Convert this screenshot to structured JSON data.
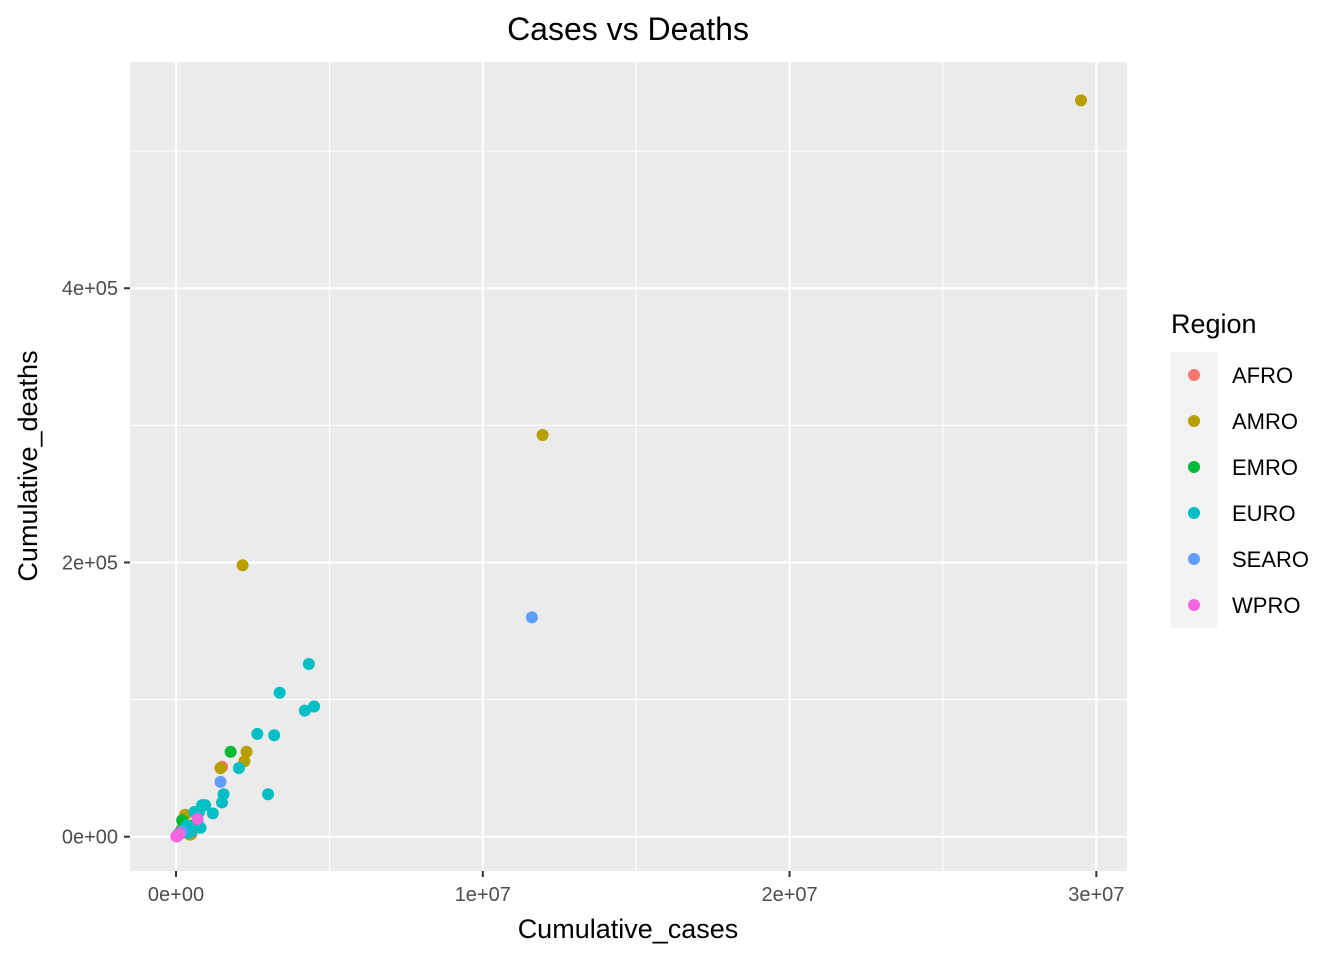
{
  "chart_data": {
    "type": "scatter",
    "title": "Cases vs Deaths",
    "xlabel": "Cumulative_cases",
    "ylabel": "Cumulative_deaths",
    "xlim": [
      -1500000,
      31000000
    ],
    "ylim": [
      -25000,
      565000
    ],
    "x_ticks": [
      {
        "value": 0,
        "label": "0e+00"
      },
      {
        "value": 10000000,
        "label": "1e+07"
      },
      {
        "value": 20000000,
        "label": "2e+07"
      },
      {
        "value": 30000000,
        "label": "3e+07"
      }
    ],
    "y_ticks": [
      {
        "value": 0,
        "label": "0e+00"
      },
      {
        "value": 200000,
        "label": "2e+05"
      },
      {
        "value": 400000,
        "label": "4e+05"
      }
    ],
    "x_minor": [
      5000000,
      15000000,
      25000000
    ],
    "y_minor": [
      100000,
      300000,
      500000
    ],
    "grid": true,
    "legend_title": "Region",
    "legend_position": "right",
    "series": [
      {
        "name": "AFRO",
        "color": "#F8766D",
        "points": [
          [
            1500000,
            51000
          ],
          [
            300000,
            5000
          ],
          [
            200000,
            3000
          ],
          [
            100000,
            1500
          ],
          [
            500000,
            2000
          ],
          [
            50000,
            500
          ]
        ]
      },
      {
        "name": "AMRO",
        "color": "#B79F00",
        "points": [
          [
            29500000,
            537000
          ],
          [
            11950000,
            293000
          ],
          [
            2170000,
            198000
          ],
          [
            2300000,
            62000
          ],
          [
            2230000,
            55000
          ],
          [
            1450000,
            50000
          ],
          [
            300000,
            16000
          ],
          [
            450000,
            1500
          ],
          [
            200000,
            6000
          ],
          [
            100000,
            2000
          ]
        ]
      },
      {
        "name": "EMRO",
        "color": "#00BA38",
        "points": [
          [
            1780000,
            62000
          ],
          [
            200000,
            12000
          ],
          [
            700000,
            13000
          ],
          [
            150000,
            4000
          ],
          [
            80000,
            2000
          ],
          [
            300000,
            6000
          ],
          [
            500000,
            8000
          ]
        ]
      },
      {
        "name": "EURO",
        "color": "#00BFC4",
        "points": [
          [
            4330000,
            126000
          ],
          [
            3380000,
            105000
          ],
          [
            4500000,
            95000
          ],
          [
            4200000,
            92000
          ],
          [
            2650000,
            75000
          ],
          [
            3200000,
            74000
          ],
          [
            2050000,
            50000
          ],
          [
            1550000,
            31000
          ],
          [
            3000000,
            31000
          ],
          [
            1500000,
            25000
          ],
          [
            850000,
            23000
          ],
          [
            950000,
            23000
          ],
          [
            1200000,
            17000
          ],
          [
            750000,
            18000
          ],
          [
            600000,
            18000
          ],
          [
            700000,
            10000
          ],
          [
            800000,
            6500
          ],
          [
            500000,
            4000
          ],
          [
            350000,
            8000
          ],
          [
            400000,
            3000
          ]
        ]
      },
      {
        "name": "SEARO",
        "color": "#619CFF",
        "points": [
          [
            11600000,
            160000
          ],
          [
            1450000,
            40000
          ],
          [
            200000,
            4000
          ]
        ]
      },
      {
        "name": "WPRO",
        "color": "#F564E3",
        "points": [
          [
            700000,
            13000
          ],
          [
            30000,
            500
          ],
          [
            50000,
            1000
          ],
          [
            10000,
            200
          ],
          [
            100000,
            2000
          ]
        ]
      }
    ]
  }
}
